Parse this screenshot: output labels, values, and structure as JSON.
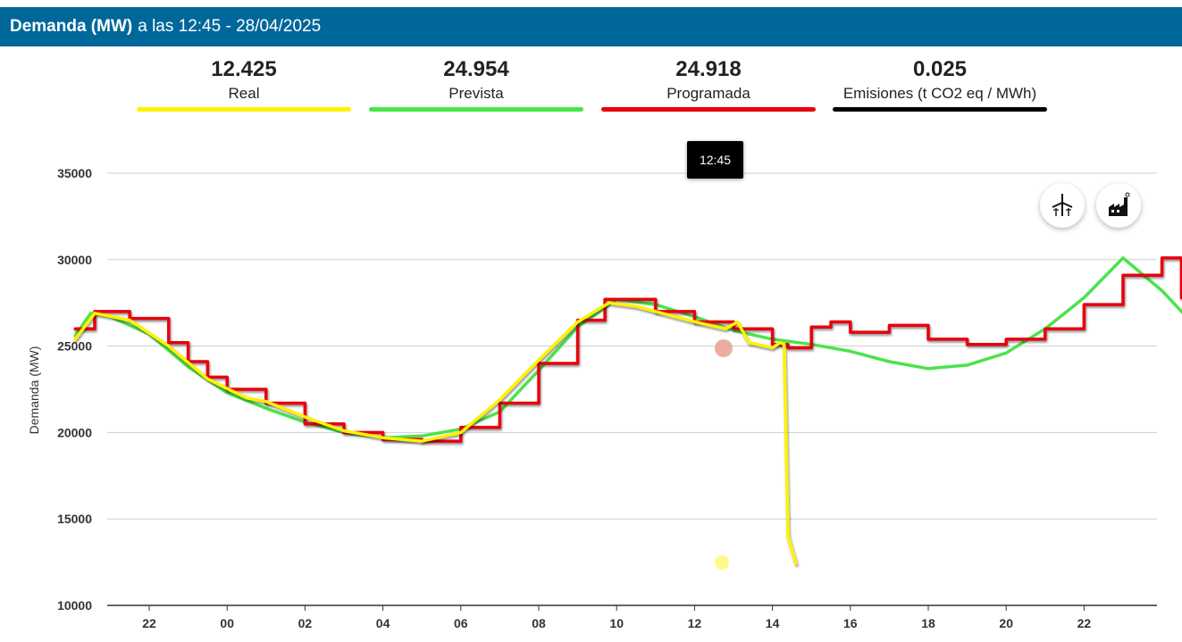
{
  "header": {
    "title_bold": "Demanda (MW)",
    "title_rest": "a las 12:45 - 28/04/2025"
  },
  "stats": {
    "real": {
      "value": "12.425",
      "label": "Real",
      "color": "#fff200"
    },
    "prevista": {
      "value": "24.954",
      "label": "Prevista",
      "color": "#4be34b"
    },
    "programada": {
      "value": "24.918",
      "label": "Programada",
      "color": "#e8000b"
    },
    "emisiones": {
      "value": "0.025",
      "label": "Emisiones (t CO2 eq / MWh)",
      "color": "#000000"
    }
  },
  "tooltip": {
    "text": "12:45"
  },
  "icons": {
    "wind": "wind-turbine-icon",
    "factory": "factory-icon"
  },
  "chart_data": {
    "type": "line",
    "ylabel": "Demanda (MW)",
    "ylim": [
      10000,
      35000
    ],
    "yticks": [
      "35000",
      "30000",
      "25000",
      "20000",
      "15000",
      "10000"
    ],
    "xlim_hours": [
      20.1,
      47.0
    ],
    "xticks": [
      "22",
      "00",
      "02",
      "04",
      "06",
      "08",
      "10",
      "12",
      "14",
      "16",
      "18",
      "20",
      "22"
    ],
    "grid": true,
    "series": [
      {
        "name": "Prevista",
        "color": "#4be34b",
        "points": [
          [
            20.1,
            25600
          ],
          [
            20.5,
            26900
          ],
          [
            21.0,
            26700
          ],
          [
            22.0,
            25700
          ],
          [
            23.0,
            23800
          ],
          [
            24.0,
            22300
          ],
          [
            25.0,
            21400
          ],
          [
            26.0,
            20600
          ],
          [
            27.0,
            20000
          ],
          [
            28.0,
            19700
          ],
          [
            29.0,
            19800
          ],
          [
            30.0,
            20200
          ],
          [
            31.0,
            21200
          ],
          [
            32.0,
            23600
          ],
          [
            33.0,
            26100
          ],
          [
            34.0,
            27700
          ],
          [
            35.0,
            27400
          ],
          [
            36.0,
            26700
          ],
          [
            37.0,
            25900
          ],
          [
            38.0,
            25400
          ],
          [
            39.0,
            25100
          ],
          [
            40.0,
            24700
          ],
          [
            41.0,
            24100
          ],
          [
            42.0,
            23700
          ],
          [
            43.0,
            23900
          ],
          [
            44.0,
            24600
          ],
          [
            45.0,
            26000
          ],
          [
            46.0,
            27800
          ],
          [
            47.0,
            30100
          ],
          [
            48.0,
            28200
          ],
          [
            49.0,
            25800
          ],
          [
            49.9,
            24400
          ]
        ]
      },
      {
        "name": "Programada",
        "color": "#e8000b",
        "points": [
          [
            20.1,
            26000
          ],
          [
            20.6,
            27000
          ],
          [
            21.5,
            26600
          ],
          [
            22.5,
            25200
          ],
          [
            23.0,
            24100
          ],
          [
            23.5,
            23200
          ],
          [
            24.0,
            22500
          ],
          [
            25.0,
            21700
          ],
          [
            26.0,
            20500
          ],
          [
            27.0,
            20000
          ],
          [
            28.0,
            19600
          ],
          [
            29.0,
            19500
          ],
          [
            30.0,
            20300
          ],
          [
            31.0,
            21700
          ],
          [
            32.0,
            24000
          ],
          [
            33.0,
            26500
          ],
          [
            33.7,
            27700
          ],
          [
            34.5,
            27700
          ],
          [
            35.0,
            27000
          ],
          [
            36.0,
            26400
          ],
          [
            37.0,
            26000
          ],
          [
            38.0,
            25100
          ],
          [
            38.4,
            24900
          ],
          [
            39.0,
            26100
          ],
          [
            39.5,
            26400
          ],
          [
            40.0,
            25800
          ],
          [
            41.0,
            26200
          ],
          [
            42.0,
            25400
          ],
          [
            43.0,
            25100
          ],
          [
            44.0,
            25400
          ],
          [
            45.0,
            26000
          ],
          [
            46.0,
            27400
          ],
          [
            47.0,
            29100
          ],
          [
            48.0,
            30100
          ],
          [
            48.5,
            27800
          ],
          [
            49.0,
            27500
          ],
          [
            49.2,
            25200
          ],
          [
            49.9,
            25200
          ]
        ]
      },
      {
        "name": "Real",
        "color": "#fff200",
        "points": [
          [
            20.1,
            25400
          ],
          [
            20.6,
            26900
          ],
          [
            21.5,
            26500
          ],
          [
            22.5,
            25000
          ],
          [
            23.5,
            23100
          ],
          [
            24.5,
            22000
          ],
          [
            25.0,
            21800
          ],
          [
            26.0,
            20900
          ],
          [
            27.0,
            20100
          ],
          [
            28.0,
            19700
          ],
          [
            29.0,
            19500
          ],
          [
            30.0,
            20000
          ],
          [
            31.0,
            21900
          ],
          [
            32.0,
            24200
          ],
          [
            33.0,
            26400
          ],
          [
            33.8,
            27500
          ],
          [
            34.5,
            27300
          ],
          [
            35.5,
            26700
          ],
          [
            36.2,
            26300
          ],
          [
            36.8,
            26000
          ],
          [
            37.1,
            26400
          ],
          [
            37.4,
            25200
          ],
          [
            38.0,
            24900
          ],
          [
            38.2,
            25200
          ],
          [
            38.3,
            25100
          ],
          [
            38.4,
            14000
          ],
          [
            38.6,
            12425
          ]
        ]
      }
    ]
  }
}
